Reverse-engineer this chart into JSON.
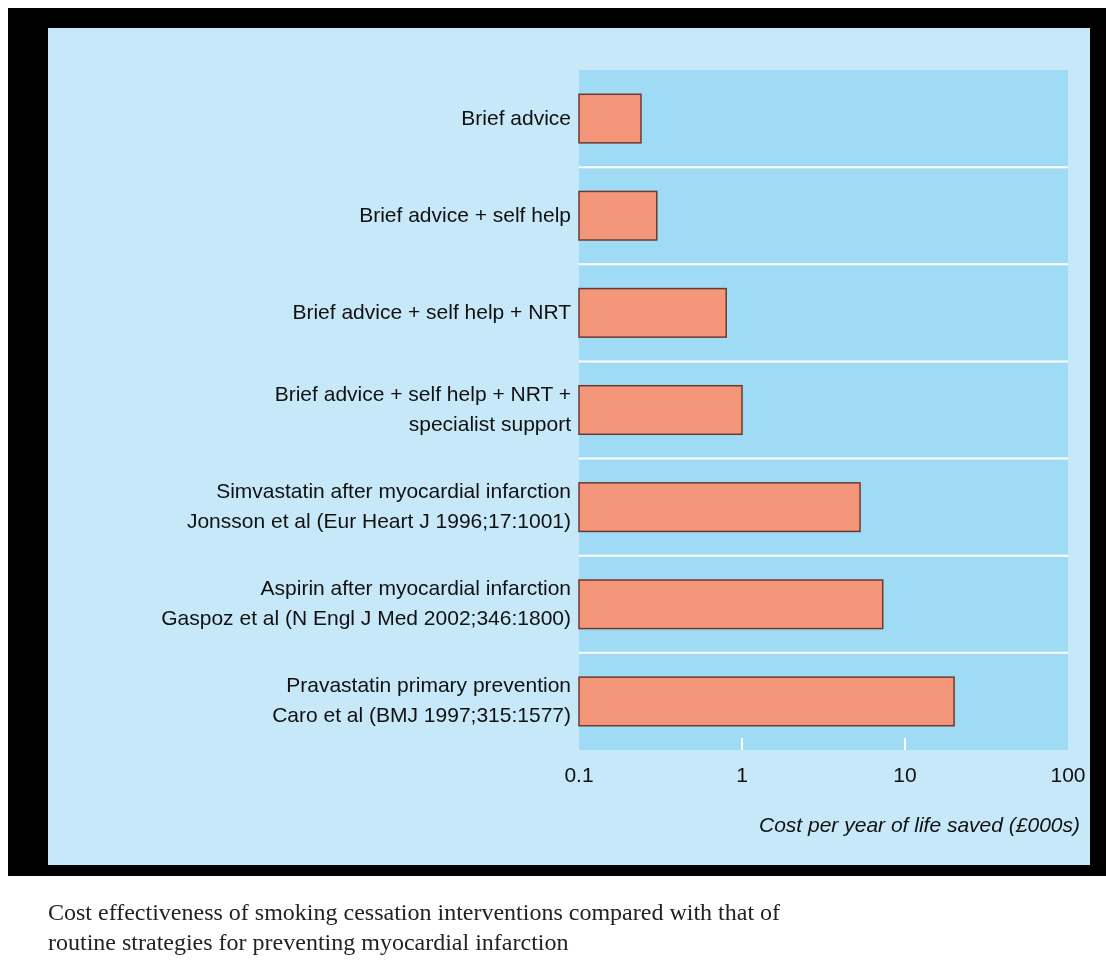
{
  "chart_data": {
    "type": "bar",
    "orientation": "horizontal",
    "log": "x",
    "categories": [
      "Brief advice",
      "Brief advice + self help",
      "Brief advice + self help + NRT",
      "Brief advice + self help + NRT +\nspecialist support",
      "Simvastatin after myocardial infarction\nJonsson et al (Eur Heart J 1996;17:1001)",
      "Aspirin after myocardial infarction\nGaspoz et al (N Engl J Med 2002;346:1800)",
      "Pravastatin primary prevention\nCaro et al (BMJ 1997;315:1577)"
    ],
    "values": [
      0.24,
      0.3,
      0.8,
      1.0,
      5.3,
      7.3,
      20
    ],
    "color": "#f4967a",
    "xlim": [
      0.1,
      100
    ],
    "xticks": [
      0.1,
      1,
      10,
      100
    ],
    "xlabel": "Cost per year of life saved (£000s)",
    "annotations": [
      "Cost effectiveness of smoking cessation interventions compared with that of routine strategies for preventing myocardial infarction"
    ]
  }
}
